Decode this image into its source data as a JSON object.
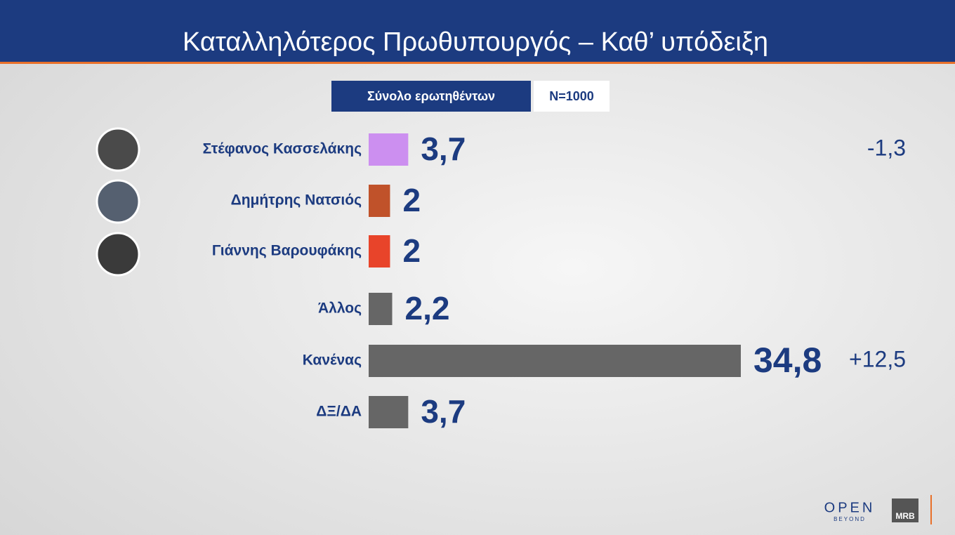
{
  "chart_data": {
    "type": "hbar",
    "title": "Καταλληλότερος  Πρωθυπουργός – Καθ’ υπόδειξη",
    "subtitle": "Σύνολο ερωτηθέντων",
    "sample": "N=1000",
    "categories": [
      "Στέφανος Κασσελάκης",
      "Δημήτρης Νατσιός",
      "Γιάννης Βαρουφάκης",
      "Άλλος",
      "Κανένας",
      "ΔΞ/ΔΑ"
    ],
    "values": [
      3.7,
      2,
      2,
      2.2,
      34.8,
      3.7
    ],
    "value_labels": [
      "3,7",
      "2",
      "2",
      "2,2",
      "34,8",
      "3,7"
    ],
    "colors": [
      "#cc8ff0",
      "#c0522a",
      "#e8442a",
      "#666666",
      "#666666",
      "#666666"
    ],
    "changes": [
      -1.3,
      null,
      null,
      null,
      12.5,
      null
    ],
    "change_labels": [
      "-1,3",
      null,
      null,
      null,
      "+12,5",
      null
    ],
    "logos": [
      "OPEN",
      "BEYOND",
      "MRB"
    ]
  }
}
